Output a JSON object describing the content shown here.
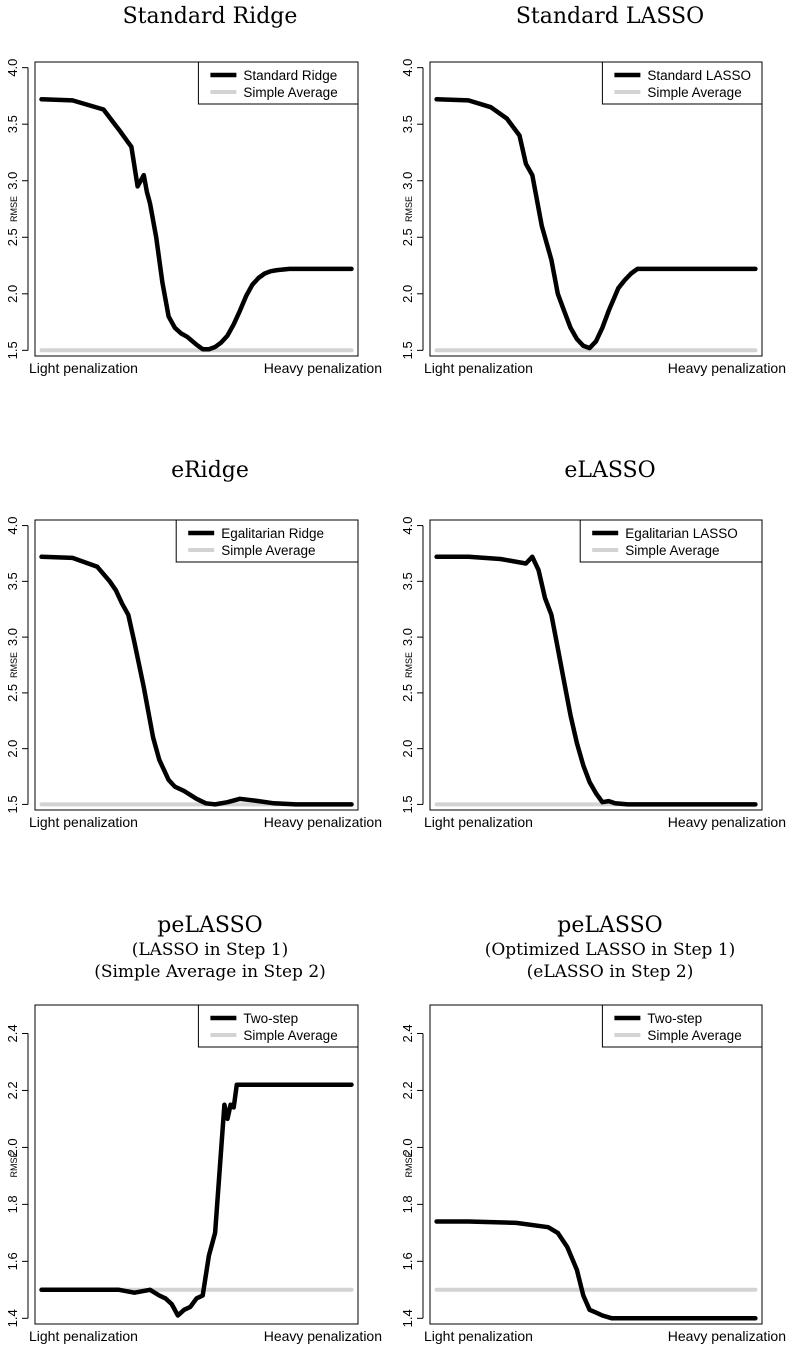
{
  "colors": {
    "series_line": "#000000",
    "average_line": "#d3d3d3"
  },
  "chart_data": [
    {
      "type": "line",
      "title": "Standard Ridge",
      "subtitle": [],
      "ylabel": "RMSE",
      "ylim": [
        1.45,
        4.05
      ],
      "yticks": [
        "1.5",
        "2.0",
        "2.5",
        "3.0",
        "3.5",
        "4.0"
      ],
      "x_range_labels": {
        "left": "Light penalization",
        "right": "Heavy penalization"
      },
      "legend_position": "top-right",
      "series": [
        {
          "name": "Standard Ridge",
          "color": "#000000",
          "x": [
            0,
            0.1,
            0.2,
            0.25,
            0.29,
            0.31,
            0.33,
            0.34,
            0.35,
            0.37,
            0.39,
            0.41,
            0.43,
            0.45,
            0.47,
            0.5,
            0.52,
            0.54,
            0.56,
            0.58,
            0.6,
            0.62,
            0.64,
            0.66,
            0.68,
            0.7,
            0.72,
            0.74,
            0.76,
            0.8,
            1
          ],
          "y": [
            3.72,
            3.71,
            3.63,
            3.45,
            3.3,
            2.95,
            3.05,
            2.9,
            2.8,
            2.5,
            2.1,
            1.8,
            1.7,
            1.65,
            1.62,
            1.55,
            1.51,
            1.51,
            1.53,
            1.57,
            1.63,
            1.73,
            1.85,
            1.98,
            2.08,
            2.14,
            2.18,
            2.2,
            2.21,
            2.22,
            2.22
          ]
        },
        {
          "name": "Simple Average",
          "color": "#d3d3d3",
          "x": [
            0,
            1
          ],
          "y": [
            1.5,
            1.5
          ]
        }
      ]
    },
    {
      "type": "line",
      "title": "Standard LASSO",
      "subtitle": [],
      "ylabel": "RMSE",
      "ylim": [
        1.45,
        4.05
      ],
      "yticks": [
        "1.5",
        "2.0",
        "2.5",
        "3.0",
        "3.5",
        "4.0"
      ],
      "x_range_labels": {
        "left": "Light penalization",
        "right": "Heavy penalization"
      },
      "legend_position": "top-right",
      "series": [
        {
          "name": "Standard LASSO",
          "color": "#000000",
          "x": [
            0,
            0.1,
            0.17,
            0.22,
            0.26,
            0.28,
            0.3,
            0.33,
            0.36,
            0.38,
            0.4,
            0.42,
            0.44,
            0.46,
            0.48,
            0.5,
            0.52,
            0.54,
            0.57,
            0.59,
            0.61,
            0.63,
            0.66,
            1
          ],
          "y": [
            3.72,
            3.71,
            3.65,
            3.55,
            3.4,
            3.15,
            3.05,
            2.6,
            2.3,
            2.0,
            1.85,
            1.7,
            1.6,
            1.54,
            1.52,
            1.58,
            1.7,
            1.85,
            2.05,
            2.12,
            2.18,
            2.22,
            2.22,
            2.22
          ]
        },
        {
          "name": "Simple Average",
          "color": "#d3d3d3",
          "x": [
            0,
            1
          ],
          "y": [
            1.5,
            1.5
          ]
        }
      ]
    },
    {
      "type": "line",
      "title": "eRidge",
      "subtitle": [],
      "ylabel": "RMSE",
      "ylim": [
        1.45,
        4.05
      ],
      "yticks": [
        "1.5",
        "2.0",
        "2.5",
        "3.0",
        "3.5",
        "4.0"
      ],
      "x_range_labels": {
        "left": "Light penalization",
        "right": "Heavy penalization"
      },
      "legend_position": "top-right",
      "series": [
        {
          "name": "Egalitarian Ridge",
          "color": "#000000",
          "x": [
            0,
            0.1,
            0.18,
            0.22,
            0.24,
            0.26,
            0.28,
            0.3,
            0.33,
            0.36,
            0.38,
            0.41,
            0.43,
            0.46,
            0.5,
            0.53,
            0.56,
            0.6,
            0.64,
            0.7,
            0.75,
            0.82,
            0.9,
            1
          ],
          "y": [
            3.72,
            3.71,
            3.63,
            3.5,
            3.42,
            3.3,
            3.2,
            2.95,
            2.55,
            2.1,
            1.9,
            1.72,
            1.66,
            1.62,
            1.55,
            1.51,
            1.5,
            1.52,
            1.55,
            1.53,
            1.51,
            1.5,
            1.5,
            1.5
          ]
        },
        {
          "name": "Simple Average",
          "color": "#d3d3d3",
          "x": [
            0,
            1
          ],
          "y": [
            1.5,
            1.5
          ]
        }
      ]
    },
    {
      "type": "line",
      "title": "eLASSO",
      "subtitle": [],
      "ylabel": "RMSE",
      "ylim": [
        1.45,
        4.05
      ],
      "yticks": [
        "1.5",
        "2.0",
        "2.5",
        "3.0",
        "3.5",
        "4.0"
      ],
      "x_range_labels": {
        "left": "Light penalization",
        "right": "Heavy penalization"
      },
      "legend_position": "top-right",
      "series": [
        {
          "name": "Egalitarian LASSO",
          "color": "#000000",
          "x": [
            0,
            0.1,
            0.2,
            0.28,
            0.3,
            0.32,
            0.34,
            0.36,
            0.38,
            0.4,
            0.42,
            0.44,
            0.46,
            0.48,
            0.5,
            0.52,
            0.54,
            0.56,
            0.6,
            0.7,
            0.85,
            1
          ],
          "y": [
            3.72,
            3.72,
            3.7,
            3.66,
            3.72,
            3.6,
            3.35,
            3.2,
            2.9,
            2.6,
            2.3,
            2.05,
            1.85,
            1.7,
            1.6,
            1.52,
            1.53,
            1.51,
            1.5,
            1.5,
            1.5,
            1.5
          ]
        },
        {
          "name": "Simple Average",
          "color": "#d3d3d3",
          "x": [
            0,
            1
          ],
          "y": [
            1.5,
            1.5
          ]
        }
      ]
    },
    {
      "type": "line",
      "title": "peLASSO",
      "subtitle": [
        "(LASSO in Step 1)",
        "(Simple Average in Step 2)"
      ],
      "ylabel": "RMSE",
      "ylim": [
        1.38,
        2.5
      ],
      "yticks": [
        "1.4",
        "1.6",
        "1.8",
        "2.0",
        "2.2",
        "2.4"
      ],
      "x_range_labels": {
        "left": "Light penalization",
        "right": "Heavy penalization"
      },
      "legend_position": "top-right",
      "series": [
        {
          "name": "Two-step",
          "color": "#000000",
          "x": [
            0,
            0.15,
            0.25,
            0.3,
            0.35,
            0.38,
            0.4,
            0.42,
            0.44,
            0.46,
            0.48,
            0.5,
            0.52,
            0.54,
            0.56,
            0.58,
            0.59,
            0.6,
            0.61,
            0.62,
            0.63,
            0.64,
            0.66,
            0.7,
            0.8,
            1
          ],
          "y": [
            1.5,
            1.5,
            1.5,
            1.49,
            1.5,
            1.48,
            1.47,
            1.45,
            1.41,
            1.43,
            1.44,
            1.47,
            1.48,
            1.62,
            1.7,
            2.0,
            2.15,
            2.1,
            2.15,
            2.14,
            2.22,
            2.22,
            2.22,
            2.22,
            2.22,
            2.22
          ]
        },
        {
          "name": "Simple Average",
          "color": "#d3d3d3",
          "x": [
            0,
            1
          ],
          "y": [
            1.5,
            1.5
          ]
        }
      ]
    },
    {
      "type": "line",
      "title": "peLASSO",
      "subtitle": [
        "(Optimized LASSO in Step 1)",
        "(eLASSO in Step 2)"
      ],
      "ylabel": "RMSE",
      "ylim": [
        1.38,
        2.5
      ],
      "yticks": [
        "1.4",
        "1.6",
        "1.8",
        "2.0",
        "2.2",
        "2.4"
      ],
      "x_range_labels": {
        "left": "Light penalization",
        "right": "Heavy penalization"
      },
      "legend_position": "top-right",
      "series": [
        {
          "name": "Two-step",
          "color": "#000000",
          "x": [
            0,
            0.1,
            0.25,
            0.35,
            0.38,
            0.41,
            0.44,
            0.46,
            0.48,
            0.5,
            0.52,
            0.55,
            0.6,
            0.8,
            1
          ],
          "y": [
            1.74,
            1.74,
            1.735,
            1.72,
            1.7,
            1.65,
            1.57,
            1.48,
            1.43,
            1.42,
            1.41,
            1.4,
            1.4,
            1.4,
            1.4
          ]
        },
        {
          "name": "Simple Average",
          "color": "#d3d3d3",
          "x": [
            0,
            1
          ],
          "y": [
            1.5,
            1.5
          ]
        }
      ]
    }
  ]
}
